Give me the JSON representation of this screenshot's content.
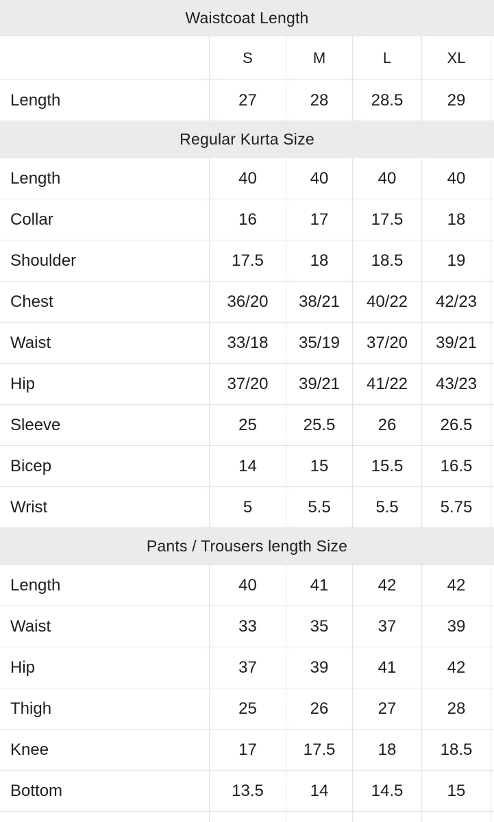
{
  "colors": {
    "band_background": "#ebebeb",
    "grid_line": "#f0dcdc",
    "text": "#1e1e1e"
  },
  "size_columns": [
    "S",
    "M",
    "L",
    "XL"
  ],
  "sections": [
    {
      "title": "Waistcoat Length",
      "show_size_header": true,
      "cropped_next_row": false,
      "rows": [
        {
          "label": "Length",
          "values": [
            "27",
            "28",
            "28.5",
            "29"
          ]
        }
      ]
    },
    {
      "title": "Regular Kurta Size",
      "show_size_header": false,
      "cropped_next_row": false,
      "rows": [
        {
          "label": "Length",
          "values": [
            "40",
            "40",
            "40",
            "40"
          ]
        },
        {
          "label": "Collar",
          "values": [
            "16",
            "17",
            "17.5",
            "18"
          ]
        },
        {
          "label": "Shoulder",
          "values": [
            "17.5",
            "18",
            "18.5",
            "19"
          ]
        },
        {
          "label": "Chest",
          "values": [
            "36/20",
            "38/21",
            "40/22",
            "42/23"
          ]
        },
        {
          "label": "Waist",
          "values": [
            "33/18",
            "35/19",
            "37/20",
            "39/21"
          ]
        },
        {
          "label": "Hip",
          "values": [
            "37/20",
            "39/21",
            "41/22",
            "43/23"
          ]
        },
        {
          "label": "Sleeve",
          "values": [
            "25",
            "25.5",
            "26",
            "26.5"
          ]
        },
        {
          "label": "Bicep",
          "values": [
            "14",
            "15",
            "15.5",
            "16.5"
          ]
        },
        {
          "label": "Wrist",
          "values": [
            "5",
            "5.5",
            "5.5",
            "5.75"
          ]
        }
      ]
    },
    {
      "title": "Pants / Trousers length Size",
      "show_size_header": false,
      "cropped_next_row": true,
      "rows": [
        {
          "label": "Length",
          "values": [
            "40",
            "41",
            "42",
            "42"
          ]
        },
        {
          "label": "Waist",
          "values": [
            "33",
            "35",
            "37",
            "39"
          ]
        },
        {
          "label": "Hip",
          "values": [
            "37",
            "39",
            "41",
            "42"
          ]
        },
        {
          "label": "Thigh",
          "values": [
            "25",
            "26",
            "27",
            "28"
          ]
        },
        {
          "label": "Knee",
          "values": [
            "17",
            "17.5",
            "18",
            "18.5"
          ]
        },
        {
          "label": "Bottom",
          "values": [
            "13.5",
            "14",
            "14.5",
            "15"
          ]
        }
      ]
    }
  ]
}
